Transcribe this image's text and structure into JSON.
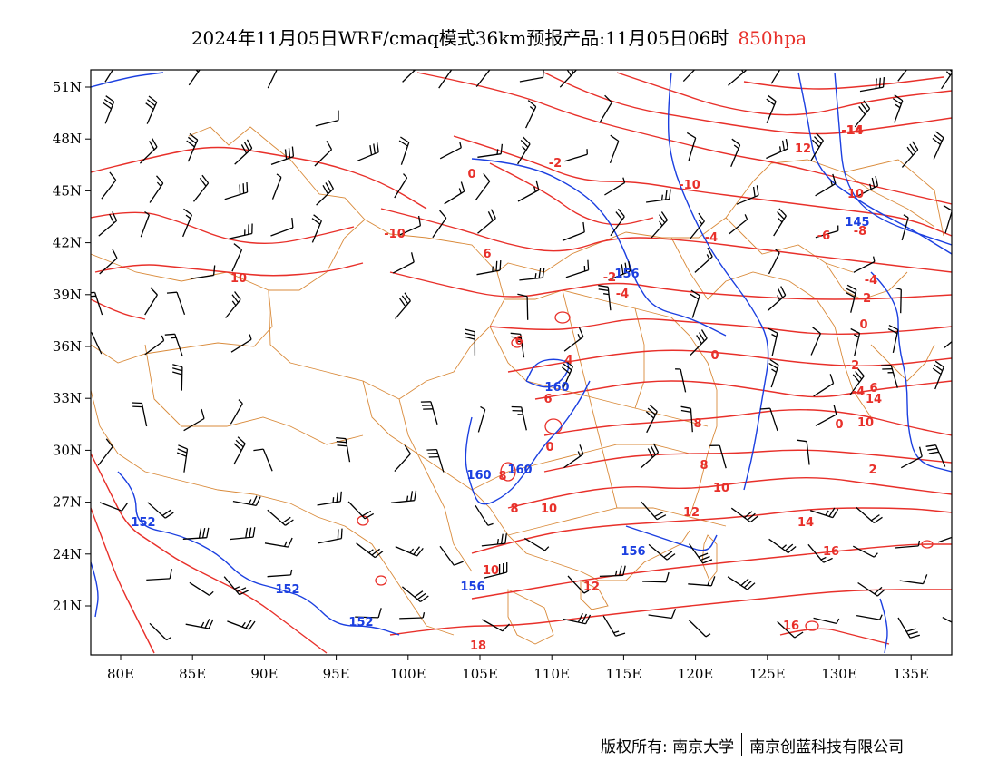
{
  "title": {
    "main": "2024年11月05日WRF/cmaq模式36km预报产品:11月05日06时",
    "level": "850hpa",
    "level_color": "#e8302a"
  },
  "map": {
    "lon_range": [
      78,
      138
    ],
    "lat_range": [
      18,
      52
    ],
    "x_ticks": [
      "80E",
      "85E",
      "90E",
      "95E",
      "100E",
      "105E",
      "110E",
      "115E",
      "120E",
      "125E",
      "130E",
      "135E"
    ],
    "y_ticks": [
      "51N",
      "48N",
      "45N",
      "42N",
      "39N",
      "36N",
      "33N",
      "30N",
      "27N",
      "24N",
      "21N"
    ],
    "colors": {
      "temperature": "#e8302a",
      "height": "#1b3fe0",
      "borders": "#d98a3a",
      "wind": "#000000"
    },
    "temperature_labels": [
      "-14",
      "12",
      "-2",
      "0",
      "-10",
      "10",
      "-10",
      "-6",
      "-8",
      "6",
      "-4",
      "-4",
      "-2",
      "-4",
      "-2",
      "10",
      "4",
      "0",
      "0",
      "-2",
      "6",
      "-4",
      "6",
      "8",
      "0",
      "10",
      "2",
      "8",
      "10",
      "0",
      "8",
      "10",
      "12",
      "8",
      "10",
      "14",
      "-14",
      "16",
      "12",
      "16",
      "18",
      "14",
      "6"
    ],
    "height_labels": [
      "145",
      "156",
      "160",
      "160",
      "160",
      "152",
      "152",
      "152",
      "156",
      "156"
    ]
  },
  "footer": {
    "left": "版权所有: 南京大学",
    "right": "南京创蓝科技有限公司"
  }
}
